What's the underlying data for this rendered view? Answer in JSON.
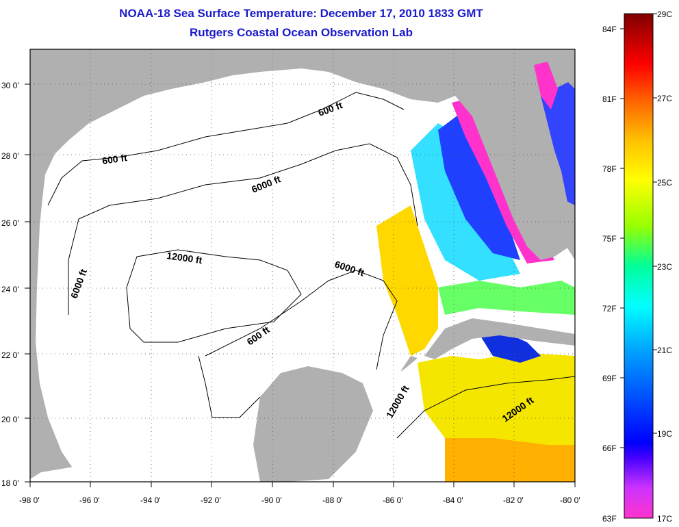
{
  "title": "NOAA-18 Sea Surface Temperature:  December 17, 2010 1833 GMT",
  "subtitle": "Rutgers Coastal Ocean Observation Lab",
  "map": {
    "lon_ticks": [
      "-98 0'",
      "-96 0'",
      "-94 0'",
      "-92 0'",
      "-90 0'",
      "-88 0'",
      "-86 0'",
      "-84 0'",
      "-82 0'",
      "-80 0'"
    ],
    "lat_ticks": [
      "18 0'",
      "20 0'",
      "22 0'",
      "24 0'",
      "26 0'",
      "28 0'",
      "30 0'"
    ],
    "lon_range": [
      -98,
      -80
    ],
    "lat_range": [
      18,
      31
    ],
    "grid": "dotted",
    "land_color": "#b0b0b0",
    "no_data_color": "#ffffff"
  },
  "contour_labels": [
    {
      "text": "600 ft"
    },
    {
      "text": "600 ft"
    },
    {
      "text": "600 ft"
    },
    {
      "text": "6000 ft"
    },
    {
      "text": "6000 ft"
    },
    {
      "text": "6000 ft"
    },
    {
      "text": "12000 ft"
    },
    {
      "text": "12000 ft"
    },
    {
      "text": "12000 ft"
    }
  ],
  "colorbar": {
    "fahrenheit": [
      "84F",
      "81F",
      "78F",
      "75F",
      "72F",
      "69F",
      "66F",
      "63F"
    ],
    "celsius": [
      "29C",
      "27C",
      "25C",
      "23C",
      "21C",
      "19C",
      "17C"
    ],
    "range_c": [
      17,
      29
    ],
    "colors": [
      "#ff00ff",
      "#0000ff",
      "#00a0ff",
      "#00ffff",
      "#00ff80",
      "#80ff00",
      "#ffff00",
      "#ffc000",
      "#ff8000",
      "#ff0000",
      "#a00000",
      "#700000"
    ]
  }
}
